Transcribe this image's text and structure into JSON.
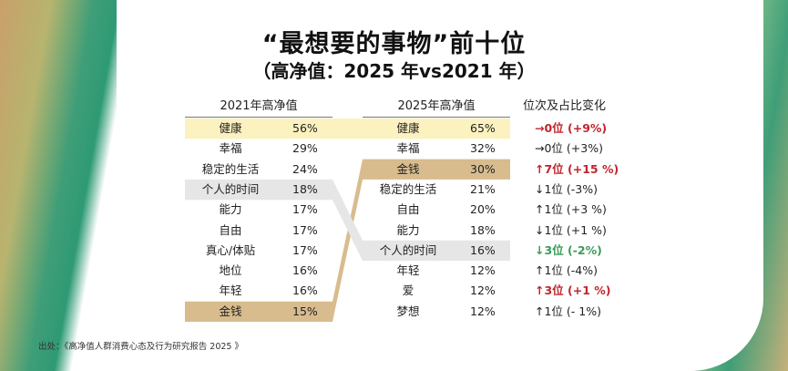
{
  "chart_data": {
    "type": "table",
    "title": "“最想要的事物”前十位",
    "subtitle": "（高净值：2025 年vs2021 年）",
    "columns": {
      "left_header": "2021年高净值",
      "right_header": "2025年高净值",
      "change_header": "位次及占比变化"
    },
    "rows_2021": [
      {
        "item": "健康",
        "value": "56%"
      },
      {
        "item": "幸福",
        "value": "29%"
      },
      {
        "item": "稳定的生活",
        "value": "24%"
      },
      {
        "item": "个人的时间",
        "value": "18%"
      },
      {
        "item": "能力",
        "value": "17%"
      },
      {
        "item": "自由",
        "value": "17%"
      },
      {
        "item": "真心/体贴",
        "value": "17%"
      },
      {
        "item": "地位",
        "value": "16%"
      },
      {
        "item": "年轻",
        "value": "16%"
      },
      {
        "item": "金钱",
        "value": "15%"
      }
    ],
    "rows_2025": [
      {
        "item": "健康",
        "value": "65%",
        "change": "→0位 (+9%)",
        "change_color": "#c0262d"
      },
      {
        "item": "幸福",
        "value": "32%",
        "change": "→0位 (+3%)",
        "change_color": "#222222"
      },
      {
        "item": "金钱",
        "value": "30%",
        "change": "↑7位 (+15 %)",
        "change_color": "#c0262d"
      },
      {
        "item": "稳定的生活",
        "value": "21%",
        "change": "↓1位 (-3%)",
        "change_color": "#222222"
      },
      {
        "item": "自由",
        "value": "20%",
        "change": "↑1位 (+3 %)",
        "change_color": "#222222"
      },
      {
        "item": "能力",
        "value": "18%",
        "change": "↓1位 (+1 %)",
        "change_color": "#222222"
      },
      {
        "item": "个人的时间",
        "value": "16%",
        "change": "↓3位 (-2%)",
        "change_color": "#3a9a5a"
      },
      {
        "item": "年轻",
        "value": "12%",
        "change": "↑1位 (-4%)",
        "change_color": "#222222"
      },
      {
        "item": "爱",
        "value": "12%",
        "change": "↑3位 (+1 %)",
        "change_color": "#c0262d"
      },
      {
        "item": "梦想",
        "value": "12%",
        "change": "↑1位 (- 1%)",
        "change_color": "#222222"
      }
    ],
    "highlights": {
      "health_color": "#fbf2bf",
      "money_color": "#d8bc8e",
      "personal_time_color": "#e6e6e6"
    }
  },
  "source": "出处：《高净值人群消费心态及行为研究报告 2025 》"
}
